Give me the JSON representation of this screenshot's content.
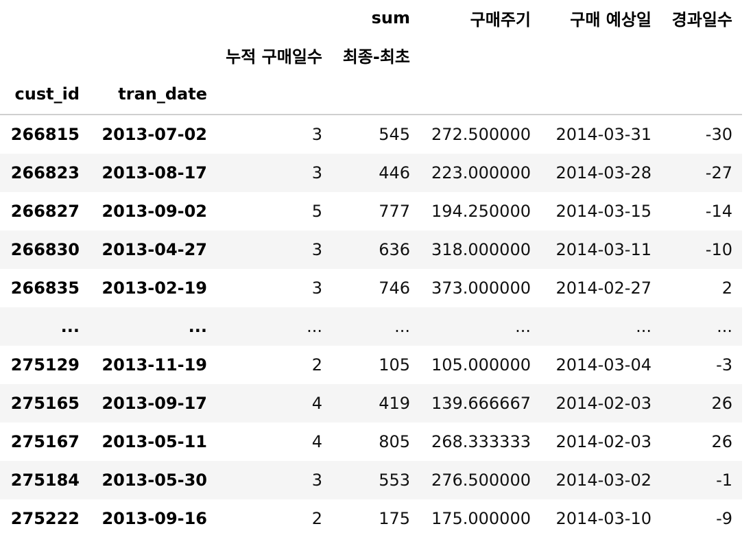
{
  "header": {
    "row1": [
      "",
      "",
      "",
      "sum",
      "구매주기",
      "구매 예상일",
      "경과일수"
    ],
    "row2": [
      "",
      "",
      "누적 구매일수",
      "최종-최초",
      "",
      "",
      ""
    ],
    "row3": [
      "cust_id",
      "tran_date",
      "",
      "",
      "",
      "",
      ""
    ]
  },
  "rows": [
    {
      "cust_id": "266815",
      "tran_date": "2013-07-02",
      "cum": "3",
      "diff": "545",
      "cycle": "272.500000",
      "pred": "2014-03-31",
      "elapsed": "-30"
    },
    {
      "cust_id": "266823",
      "tran_date": "2013-08-17",
      "cum": "3",
      "diff": "446",
      "cycle": "223.000000",
      "pred": "2014-03-28",
      "elapsed": "-27"
    },
    {
      "cust_id": "266827",
      "tran_date": "2013-09-02",
      "cum": "5",
      "diff": "777",
      "cycle": "194.250000",
      "pred": "2014-03-15",
      "elapsed": "-14"
    },
    {
      "cust_id": "266830",
      "tran_date": "2013-04-27",
      "cum": "3",
      "diff": "636",
      "cycle": "318.000000",
      "pred": "2014-03-11",
      "elapsed": "-10"
    },
    {
      "cust_id": "266835",
      "tran_date": "2013-02-19",
      "cum": "3",
      "diff": "746",
      "cycle": "373.000000",
      "pred": "2014-02-27",
      "elapsed": "2"
    },
    {
      "cust_id": "...",
      "tran_date": "...",
      "cum": "...",
      "diff": "...",
      "cycle": "...",
      "pred": "...",
      "elapsed": "..."
    },
    {
      "cust_id": "275129",
      "tran_date": "2013-11-19",
      "cum": "2",
      "diff": "105",
      "cycle": "105.000000",
      "pred": "2014-03-04",
      "elapsed": "-3"
    },
    {
      "cust_id": "275165",
      "tran_date": "2013-09-17",
      "cum": "4",
      "diff": "419",
      "cycle": "139.666667",
      "pred": "2014-02-03",
      "elapsed": "26"
    },
    {
      "cust_id": "275167",
      "tran_date": "2013-05-11",
      "cum": "4",
      "diff": "805",
      "cycle": "268.333333",
      "pred": "2014-02-03",
      "elapsed": "26"
    },
    {
      "cust_id": "275184",
      "tran_date": "2013-05-30",
      "cum": "3",
      "diff": "553",
      "cycle": "276.500000",
      "pred": "2014-03-02",
      "elapsed": "-1"
    },
    {
      "cust_id": "275222",
      "tran_date": "2013-09-16",
      "cum": "2",
      "diff": "175",
      "cycle": "175.000000",
      "pred": "2014-03-10",
      "elapsed": "-9"
    }
  ],
  "colors": {
    "zebra": "#f5f5f5",
    "header_rule": "#cfcfcf"
  }
}
